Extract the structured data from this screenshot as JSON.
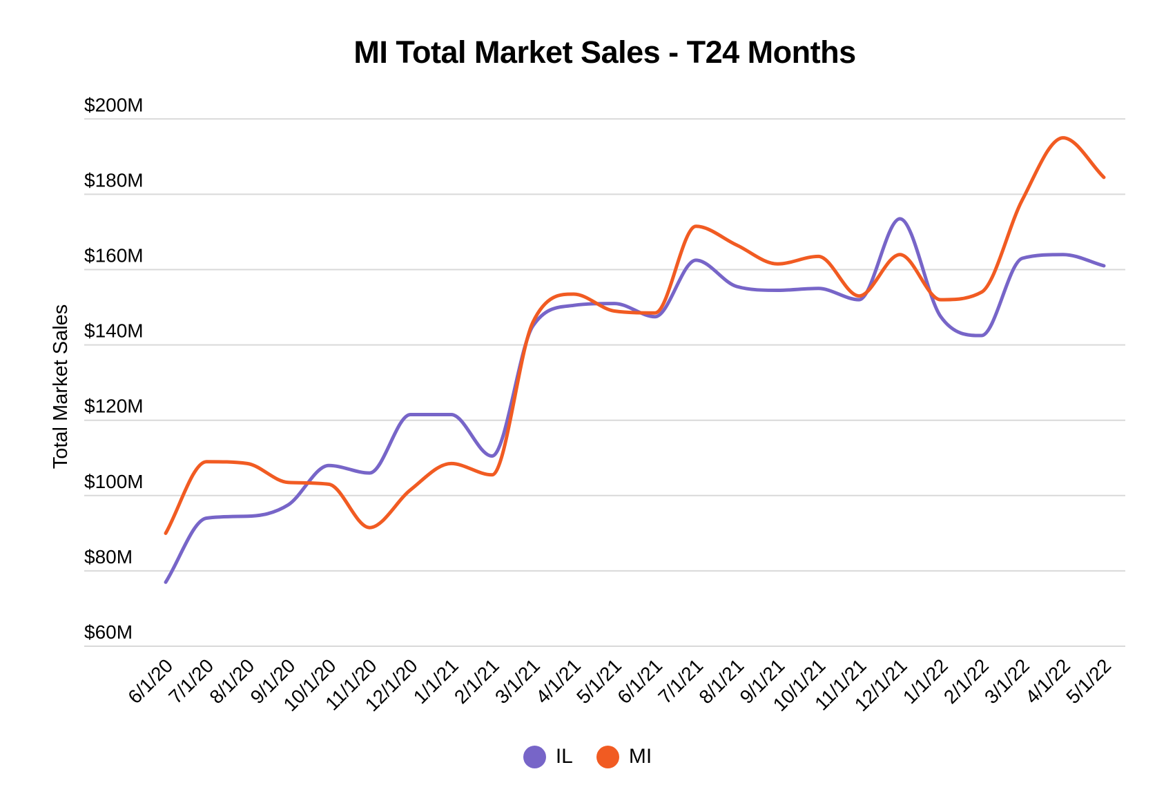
{
  "chart_data": {
    "type": "line",
    "title": "MI Total Market Sales - T24 Months",
    "xlabel": "",
    "ylabel": "Total Market Sales",
    "curve": "smooth-monotone",
    "grid": true,
    "legend_position": "bottom",
    "background_color": "#FFFFFF",
    "gridline_color": "#D9D9D9",
    "text_color": "#000000",
    "categories": [
      "6/1/20",
      "7/1/20",
      "8/1/20",
      "9/1/20",
      "10/1/20",
      "11/1/20",
      "12/1/20",
      "1/1/21",
      "2/1/21",
      "3/1/21",
      "4/1/21",
      "5/1/21",
      "6/1/21",
      "7/1/21",
      "8/1/21",
      "9/1/21",
      "10/1/21",
      "11/1/21",
      "12/1/21",
      "1/1/22",
      "2/1/22",
      "3/1/22",
      "4/1/22",
      "5/1/22"
    ],
    "series": [
      {
        "name": "IL",
        "color": "#7765C8",
        "values": [
          77,
          94,
          94.5,
          97.5,
          108,
          106,
          121.5,
          121.5,
          110.5,
          145,
          150.5,
          151,
          147.5,
          162.5,
          155.5,
          154.5,
          155,
          152,
          173.5,
          147.5,
          142.5,
          163,
          164,
          161
        ]
      },
      {
        "name": "MI",
        "color": "#F15B22",
        "values": [
          90,
          109,
          108.5,
          103.5,
          103,
          91.5,
          101.5,
          108.5,
          105.5,
          146,
          153.5,
          149,
          148.5,
          171.5,
          166.5,
          161.5,
          163.5,
          153,
          164,
          152,
          154,
          178.5,
          195,
          184.5
        ]
      }
    ],
    "y_axis": {
      "min": 60,
      "max": 200,
      "step": 20,
      "tick_labels": [
        "$60M",
        "$80M",
        "$100M",
        "$120M",
        "$140M",
        "$160M",
        "$180M",
        "$200M"
      ]
    },
    "units": "millions USD"
  }
}
